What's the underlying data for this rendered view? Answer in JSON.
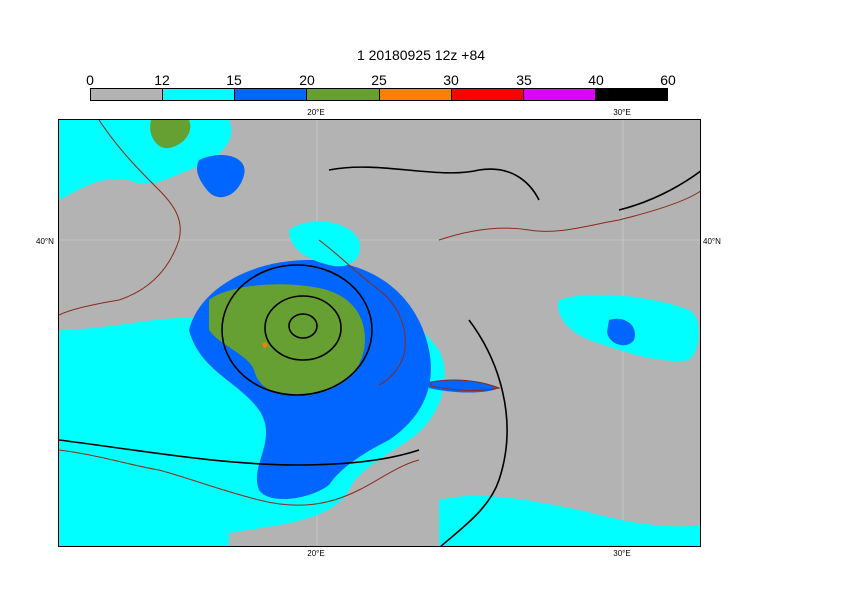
{
  "title": "1 20180925 12z +84",
  "legend": {
    "ticks": [
      "0",
      "12",
      "15",
      "20",
      "25",
      "30",
      "35",
      "40",
      "60"
    ],
    "colors": [
      "#b3b3b3",
      "#00ffff",
      "#0066ff",
      "#66a033",
      "#ff8000",
      "#ff0000",
      "#e000ff",
      "#000000"
    ]
  },
  "axes": {
    "lon_top": [
      "20°E",
      "30°E"
    ],
    "lon_bottom": [
      "20°E",
      "30°E"
    ],
    "lat_left": [
      "40°N"
    ],
    "lat_right": [
      "40°N"
    ]
  },
  "map_colors": {
    "land_sea": "#b3b3b3",
    "coast": "#8b2a1a",
    "contour": "#000000",
    "grid": "#d0d0d0"
  }
}
